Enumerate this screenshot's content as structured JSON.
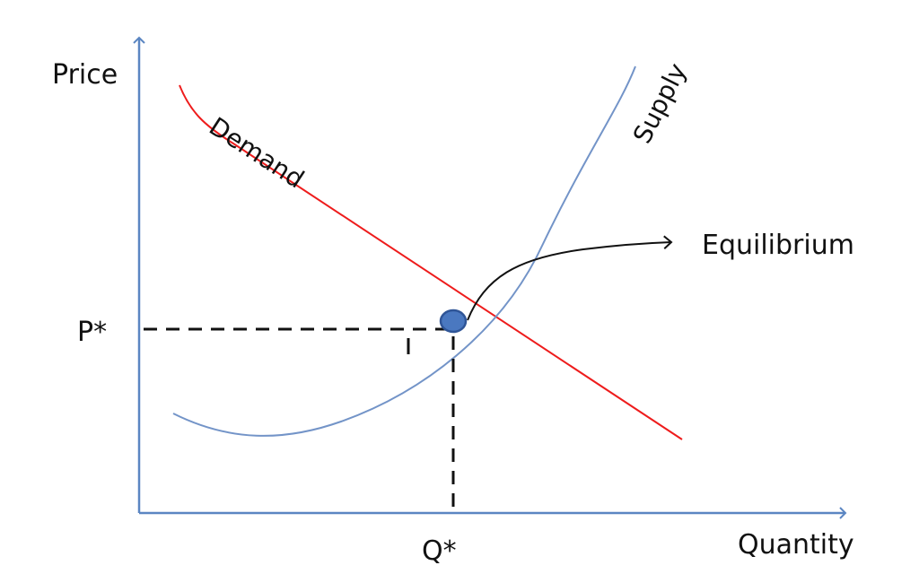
{
  "axes": {
    "y_label": "Price",
    "x_label": "Quantity"
  },
  "markers": {
    "price_label": "P*",
    "quantity_label": "Q*"
  },
  "curves": {
    "demand_label": "Demand",
    "supply_label": "Supply"
  },
  "annotation": {
    "equilibrium_label": "Equilibrium"
  },
  "colors": {
    "axis": "#5b86c2",
    "demand": "#ee1c1c",
    "supply": "#7394c8",
    "point_fill": "#4a78c0",
    "point_stroke": "#2f5597",
    "guide": "#111111"
  }
}
